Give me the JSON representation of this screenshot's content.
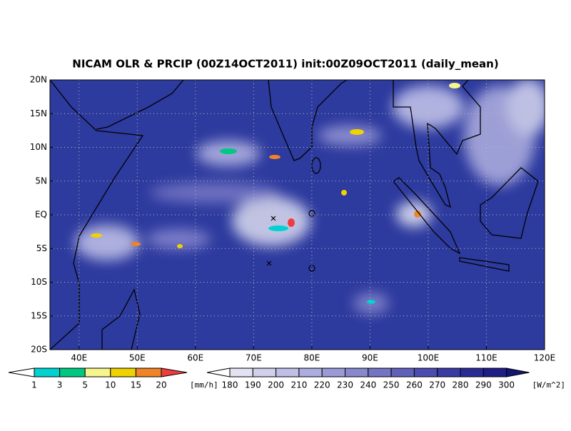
{
  "title": "NICAM OLR & PRCIP (00Z14OCT2011) init:00Z09OCT2011 (daily_mean)",
  "lat_labels": [
    "20N",
    "15N",
    "10N",
    "5N",
    "EQ",
    "5S",
    "10S",
    "15S",
    "20S"
  ],
  "lon_labels": [
    "40E",
    "50E",
    "60E",
    "70E",
    "80E",
    "90E",
    "100E",
    "110E",
    "120E"
  ],
  "precip_colorbar": {
    "labels": [
      "1",
      "3",
      "5",
      "10",
      "15",
      "20"
    ],
    "unit": "[mm/h]",
    "colors": [
      "#ffffff",
      "#00d2d2",
      "#00c882",
      "#f5f58c",
      "#f0d200",
      "#f08228",
      "#f03c3c"
    ]
  },
  "olr_colorbar": {
    "labels": [
      "180",
      "190",
      "200",
      "210",
      "220",
      "230",
      "240",
      "250",
      "260",
      "270",
      "280",
      "290",
      "300"
    ],
    "unit": "[W/m^2]",
    "colors": [
      "#ffffff",
      "#e2e2f2",
      "#d0d0ec",
      "#bebee6",
      "#acacdf",
      "#9a9ad6",
      "#8888cd",
      "#7474c4",
      "#6060bb",
      "#4c4cb0",
      "#3a3aa4",
      "#2a2a96",
      "#1e1e86",
      "#141474"
    ]
  }
}
